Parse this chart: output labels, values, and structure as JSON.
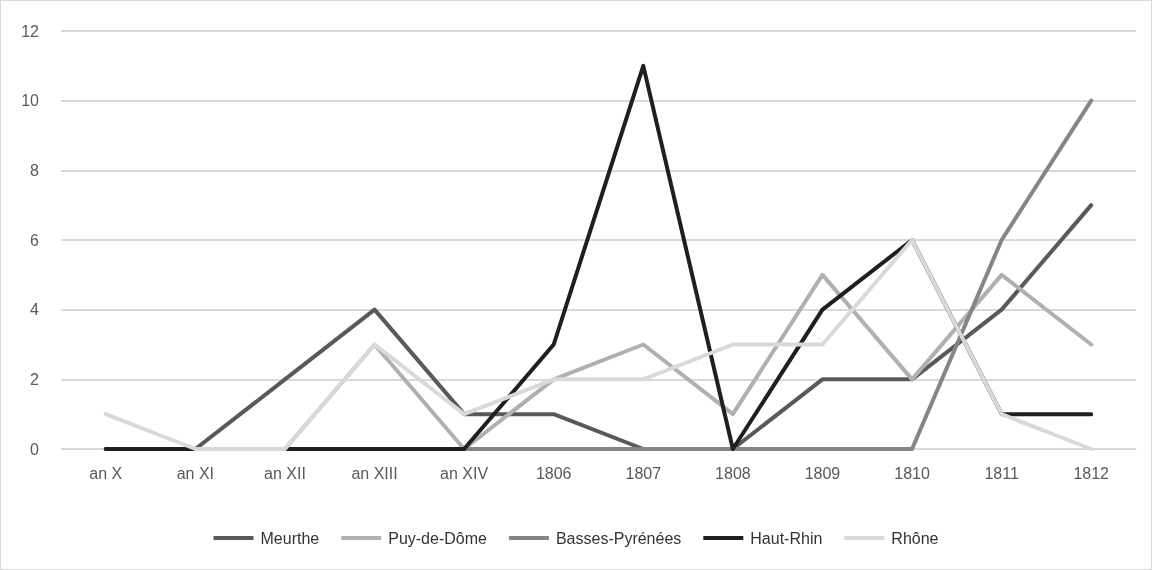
{
  "chart_data": {
    "type": "line",
    "categories": [
      "an X",
      "an XI",
      "an XII",
      "an XIII",
      "an XIV",
      "1806",
      "1807",
      "1808",
      "1809",
      "1810",
      "1811",
      "1812"
    ],
    "series": [
      {
        "name": "Meurthe",
        "color": "#595959",
        "values": [
          0,
          0,
          2,
          4,
          1,
          1,
          0,
          0,
          2,
          2,
          4,
          7
        ]
      },
      {
        "name": "Puy-de-Dôme",
        "color": "#b0b0b0",
        "values": [
          0,
          0,
          0,
          3,
          0,
          2,
          3,
          1,
          5,
          2,
          5,
          3
        ]
      },
      {
        "name": "Basses-Pyrénées",
        "color": "#858585",
        "values": [
          0,
          0,
          0,
          0,
          0,
          0,
          0,
          0,
          0,
          0,
          6,
          10
        ]
      },
      {
        "name": "Haut-Rhin",
        "color": "#1f1f1f",
        "values": [
          0,
          0,
          0,
          0,
          0,
          3,
          11,
          0,
          4,
          6,
          1,
          1
        ]
      },
      {
        "name": "Rhône",
        "color": "#d9d9d9",
        "values": [
          1,
          0,
          0,
          3,
          1,
          2,
          2,
          3,
          3,
          6,
          1,
          0
        ]
      }
    ],
    "ylim": [
      0,
      12
    ],
    "yticks": [
      0,
      2,
      4,
      6,
      8,
      10,
      12
    ],
    "grid": "y",
    "legend": "bottom",
    "marker": "none",
    "line_style": "solid"
  }
}
